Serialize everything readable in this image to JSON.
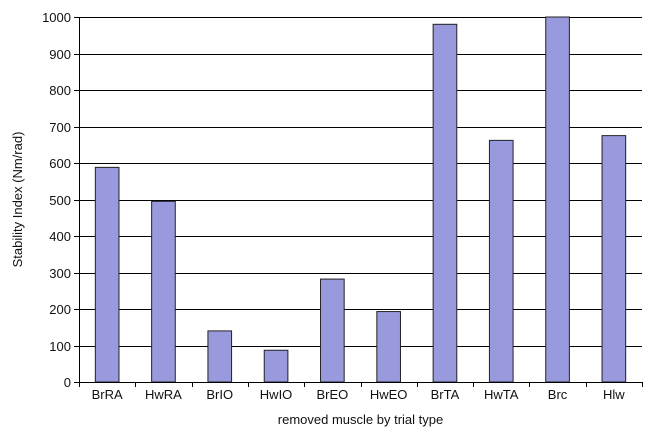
{
  "chart_data": {
    "type": "bar",
    "xlabel": "removed muscle by trial type",
    "ylabel": "Stability Index (Nm/rad)",
    "ylim": [
      0,
      1000
    ],
    "yticks": [
      0,
      100,
      200,
      300,
      400,
      500,
      600,
      700,
      800,
      900,
      1000
    ],
    "categories": [
      "BrRA",
      "HwRA",
      "BrIO",
      "HwIO",
      "BrEO",
      "HwEO",
      "BrTA",
      "HwTA",
      "Brc",
      "Hlw"
    ],
    "values": [
      588,
      495,
      140,
      87,
      282,
      193,
      980,
      662,
      1000,
      675
    ],
    "grid": true,
    "colors": {
      "bar_fill": "#9999dd",
      "bar_stroke": "#222222",
      "grid": "#000000"
    }
  }
}
